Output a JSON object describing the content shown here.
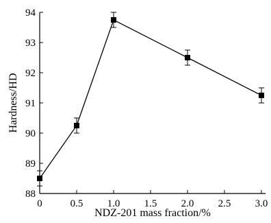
{
  "chart_data": {
    "type": "line",
    "xlabel": "NDZ-201 mass fraction/%",
    "ylabel": "Hardness/HD",
    "xlim": [
      0,
      3.0
    ],
    "ylim": [
      88,
      94
    ],
    "x_ticks": [
      "0",
      "0.5",
      "1.0",
      "1.5",
      "2.0",
      "2.5",
      "3.0"
    ],
    "y_ticks": [
      "88",
      "89",
      "90",
      "91",
      "92",
      "93",
      "94"
    ],
    "grid": false,
    "legend": "none",
    "series": [
      {
        "x": [
          0,
          0.5,
          1.0,
          2.0,
          3.0
        ],
        "y": [
          88.5,
          90.25,
          93.75,
          92.5,
          91.25
        ],
        "error": [
          0.25,
          0.25,
          0.25,
          0.25,
          0.25
        ],
        "marker": "square",
        "color": "#000000"
      }
    ]
  }
}
